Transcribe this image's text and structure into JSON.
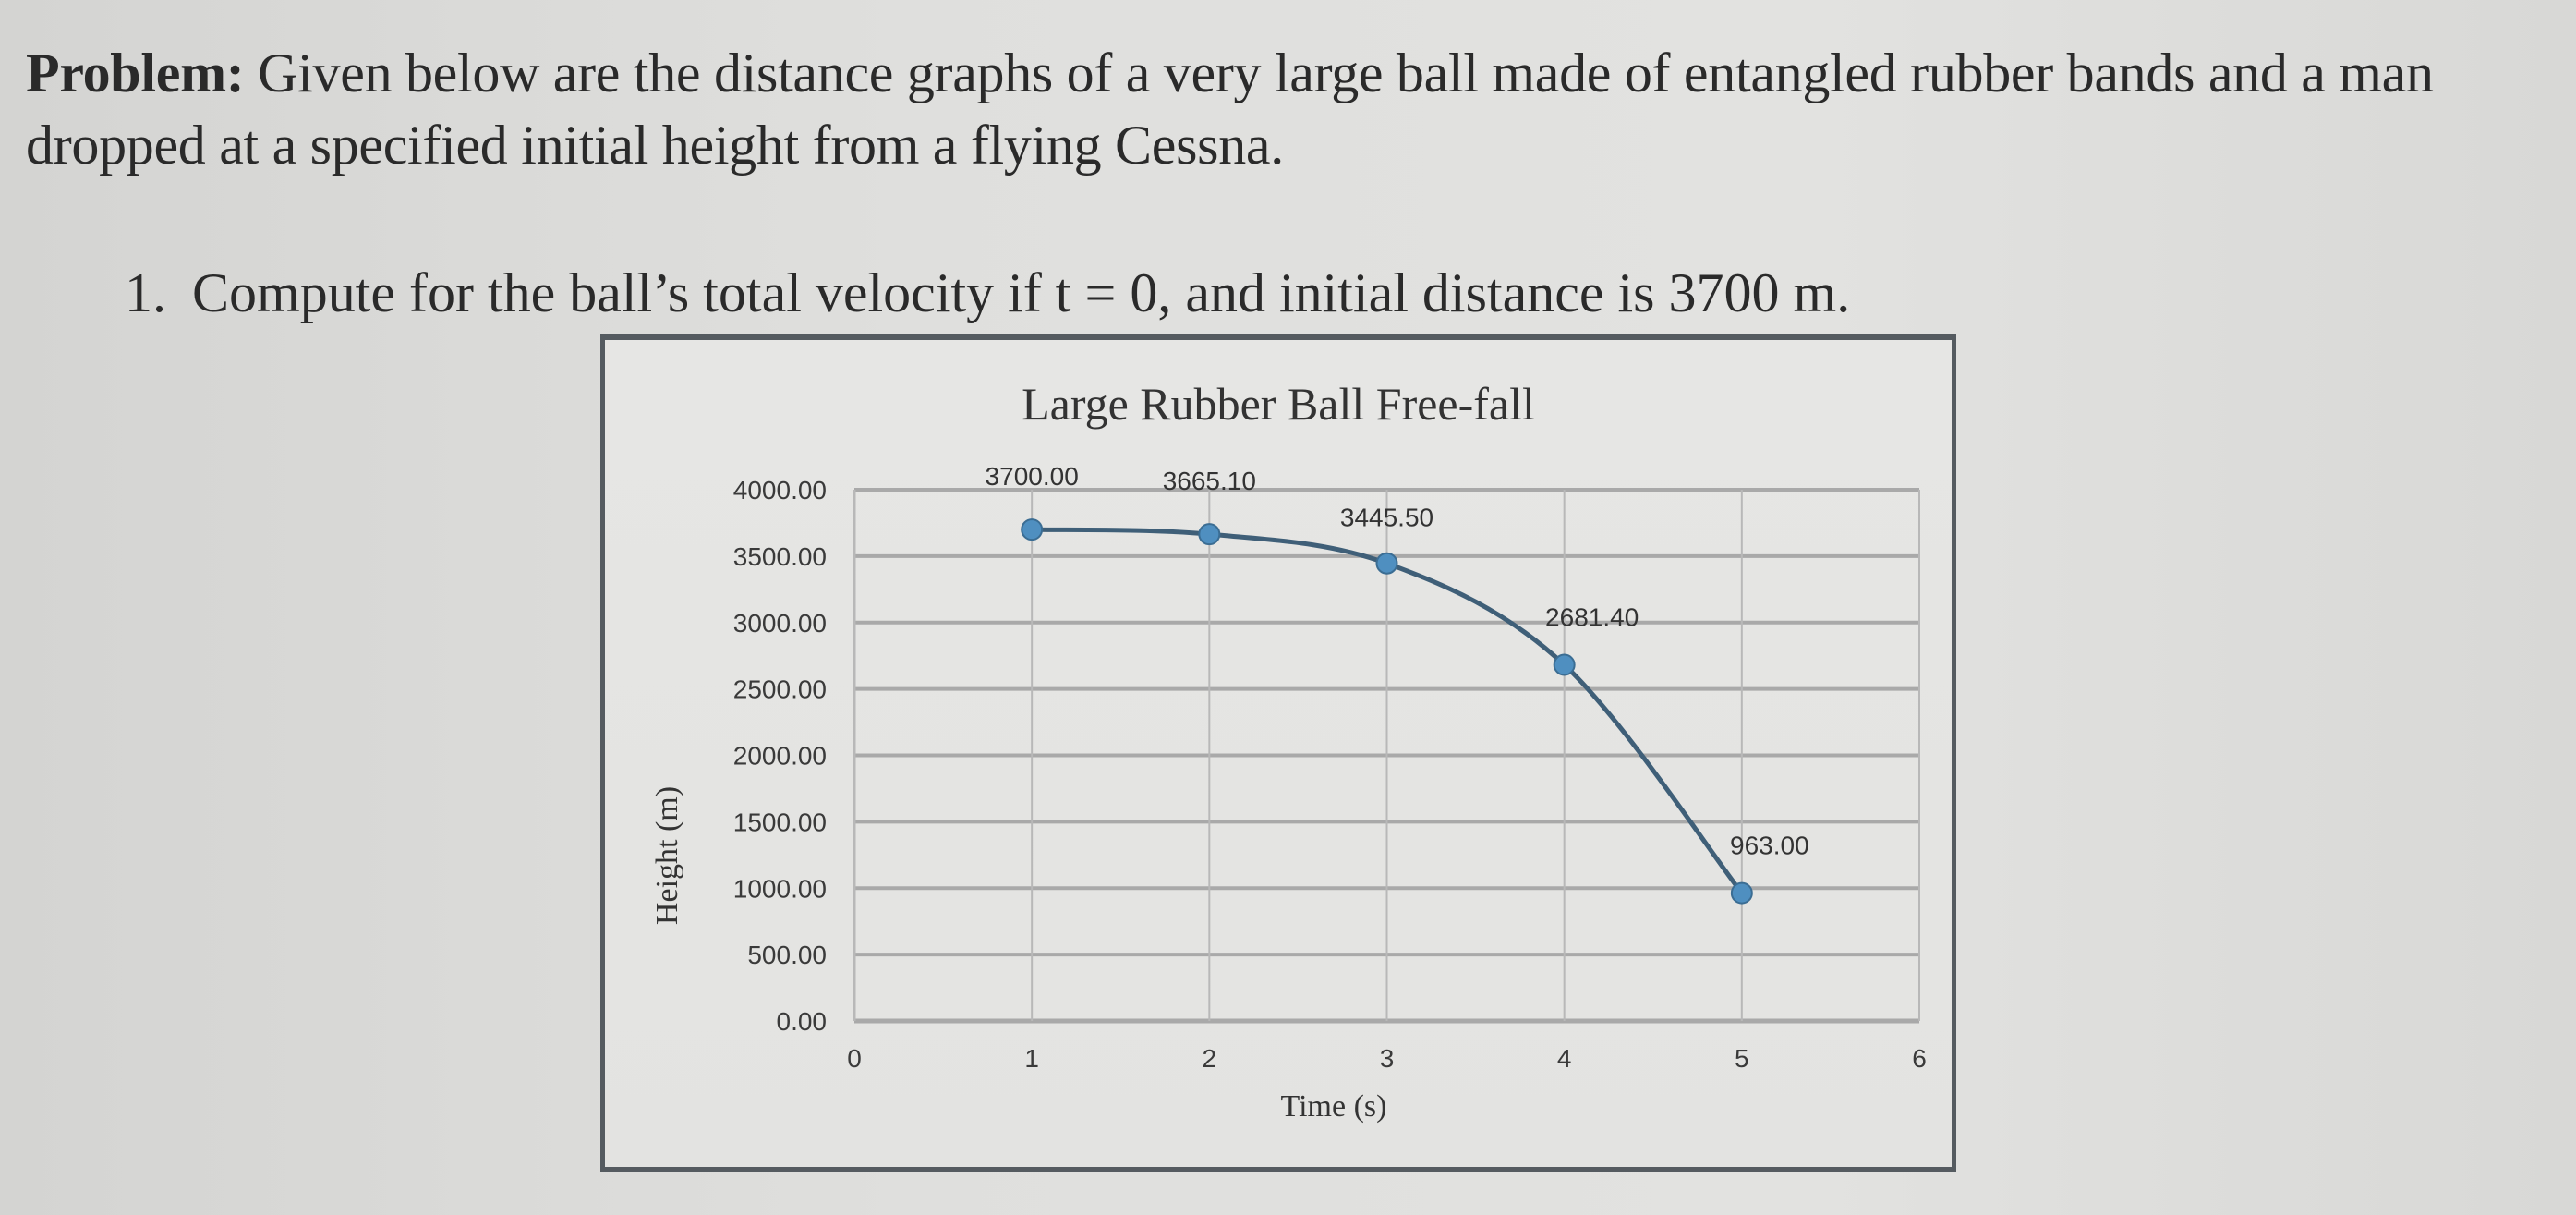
{
  "problem": {
    "label": "Problem:",
    "text": " Given below are the distance graphs of a very large ball made of entangled rubber bands and a man dropped at a specified initial height from a flying Cessna."
  },
  "question": {
    "number": "1.",
    "text": "Compute for the ball’s total velocity if t = 0, and initial distance is 3700 m."
  },
  "chart": {
    "title": "Large  Rubber Ball Free-fall",
    "xlabel": "Time (s)",
    "ylabel": "Height (m)",
    "line_color": "#3f5f78",
    "marker_color": "#4f8fc0",
    "grid_color": "#a9a9a9"
  },
  "chart_data": {
    "type": "line",
    "title": "Large Rubber Ball Free-fall",
    "xlabel": "Time (s)",
    "ylabel": "Height (m)",
    "x": [
      1,
      2,
      3,
      4,
      5
    ],
    "values": [
      3700.0,
      3665.1,
      3445.5,
      2681.4,
      963.0
    ],
    "data_labels": [
      "3700.00",
      "3665.10",
      "3445.50",
      "2681.40",
      "963.00"
    ],
    "xlim": [
      0,
      6
    ],
    "ylim": [
      0,
      4000
    ],
    "x_ticks": [
      "0",
      "1",
      "2",
      "3",
      "4",
      "5",
      "6"
    ],
    "y_ticks": [
      "0.00",
      "500.00",
      "1000.00",
      "1500.00",
      "2000.00",
      "2500.00",
      "3000.00",
      "3500.00",
      "4000.00"
    ],
    "grid": true,
    "smooth": true,
    "markers": true,
    "legend": null
  }
}
